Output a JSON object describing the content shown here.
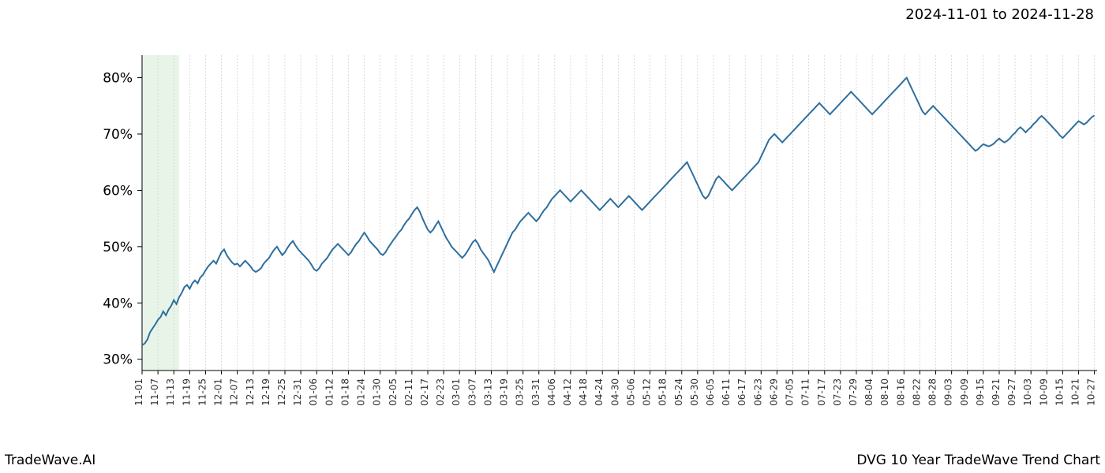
{
  "header": {
    "date_range": "2024-11-01 to 2024-11-28"
  },
  "footer": {
    "brand": "TradeWave.AI",
    "title": "DVG 10 Year TradeWave Trend Chart"
  },
  "chart": {
    "type": "line",
    "background_color": "#ffffff",
    "grid_color": "#cccccc",
    "axis_color": "#000000",
    "line_color": "#2e6f9e",
    "line_width": 2,
    "highlight_band": {
      "start_index": 0,
      "end_index": 14,
      "fill": "#dceedc",
      "opacity": 0.65
    },
    "xlim": [
      0,
      361
    ],
    "ylim": [
      28,
      84
    ],
    "ytick_step": 10,
    "ytick_suffix": "%",
    "ytick_fontsize": 17,
    "xtick_fontsize": 12,
    "xtick_rotation_deg": 90,
    "x_labels": [
      "11-01",
      "11-07",
      "11-13",
      "11-19",
      "11-25",
      "12-01",
      "12-07",
      "12-13",
      "12-19",
      "12-25",
      "12-31",
      "01-06",
      "01-12",
      "01-18",
      "01-24",
      "01-30",
      "02-05",
      "02-11",
      "02-17",
      "02-23",
      "03-01",
      "03-07",
      "03-13",
      "03-19",
      "03-25",
      "03-31",
      "04-06",
      "04-12",
      "04-18",
      "04-24",
      "04-30",
      "05-06",
      "05-12",
      "05-18",
      "05-24",
      "05-30",
      "06-05",
      "06-11",
      "06-17",
      "06-23",
      "06-29",
      "07-05",
      "07-11",
      "07-17",
      "07-23",
      "07-29",
      "08-04",
      "08-10",
      "08-16",
      "08-22",
      "08-28",
      "09-03",
      "09-09",
      "09-15",
      "09-21",
      "09-27",
      "10-03",
      "10-09",
      "10-15",
      "10-21",
      "10-27"
    ],
    "x_label_step": 6,
    "values": [
      32.5,
      32.8,
      33.5,
      34.8,
      35.5,
      36.2,
      37.0,
      37.5,
      38.5,
      37.8,
      38.8,
      39.5,
      40.5,
      39.8,
      41.0,
      41.8,
      42.8,
      43.2,
      42.5,
      43.5,
      44.0,
      43.5,
      44.5,
      45.0,
      45.8,
      46.5,
      47.0,
      47.5,
      47.0,
      48.0,
      49.0,
      49.5,
      48.5,
      47.8,
      47.2,
      46.8,
      47.0,
      46.5,
      47.0,
      47.5,
      47.0,
      46.5,
      45.8,
      45.5,
      45.8,
      46.2,
      47.0,
      47.5,
      48.0,
      48.8,
      49.5,
      50.0,
      49.2,
      48.5,
      49.0,
      49.8,
      50.5,
      51.0,
      50.2,
      49.5,
      49.0,
      48.5,
      48.0,
      47.5,
      46.8,
      46.0,
      45.7,
      46.2,
      47.0,
      47.5,
      48.0,
      48.8,
      49.5,
      50.0,
      50.5,
      50.0,
      49.5,
      49.0,
      48.5,
      49.0,
      49.8,
      50.5,
      51.0,
      51.8,
      52.5,
      51.8,
      51.0,
      50.5,
      50.0,
      49.5,
      48.8,
      48.5,
      49.0,
      49.8,
      50.5,
      51.2,
      51.8,
      52.5,
      53.0,
      53.8,
      54.5,
      55.0,
      55.8,
      56.5,
      57.0,
      56.2,
      55.0,
      54.0,
      53.0,
      52.5,
      53.0,
      53.8,
      54.5,
      53.5,
      52.5,
      51.5,
      50.8,
      50.0,
      49.5,
      49.0,
      48.5,
      48.0,
      48.5,
      49.2,
      50.0,
      50.8,
      51.2,
      50.5,
      49.5,
      48.8,
      48.2,
      47.5,
      46.5,
      45.5,
      46.5,
      47.5,
      48.5,
      49.5,
      50.5,
      51.5,
      52.5,
      53.0,
      53.8,
      54.5,
      55.0,
      55.5,
      56.0,
      55.5,
      55.0,
      54.5,
      55.0,
      55.8,
      56.5,
      57.0,
      57.8,
      58.5,
      59.0,
      59.5,
      60.0,
      59.5,
      59.0,
      58.5,
      58.0,
      58.5,
      59.0,
      59.5,
      60.0,
      59.5,
      59.0,
      58.5,
      58.0,
      57.5,
      57.0,
      56.5,
      57.0,
      57.5,
      58.0,
      58.5,
      58.0,
      57.5,
      57.0,
      57.5,
      58.0,
      58.5,
      59.0,
      58.5,
      58.0,
      57.5,
      57.0,
      56.5,
      57.0,
      57.5,
      58.0,
      58.5,
      59.0,
      59.5,
      60.0,
      60.5,
      61.0,
      61.5,
      62.0,
      62.5,
      63.0,
      63.5,
      64.0,
      64.5,
      65.0,
      64.0,
      63.0,
      62.0,
      61.0,
      60.0,
      59.0,
      58.5,
      59.0,
      60.0,
      61.0,
      62.0,
      62.5,
      62.0,
      61.5,
      61.0,
      60.5,
      60.0,
      60.5,
      61.0,
      61.5,
      62.0,
      62.5,
      63.0,
      63.5,
      64.0,
      64.5,
      65.0,
      66.0,
      67.0,
      68.0,
      69.0,
      69.5,
      70.0,
      69.5,
      69.0,
      68.5,
      69.0,
      69.5,
      70.0,
      70.5,
      71.0,
      71.5,
      72.0,
      72.5,
      73.0,
      73.5,
      74.0,
      74.5,
      75.0,
      75.5,
      75.0,
      74.5,
      74.0,
      73.5,
      74.0,
      74.5,
      75.0,
      75.5,
      76.0,
      76.5,
      77.0,
      77.5,
      77.0,
      76.5,
      76.0,
      75.5,
      75.0,
      74.5,
      74.0,
      73.5,
      74.0,
      74.5,
      75.0,
      75.5,
      76.0,
      76.5,
      77.0,
      77.5,
      78.0,
      78.5,
      79.0,
      79.5,
      80.0,
      79.0,
      78.0,
      77.0,
      76.0,
      75.0,
      74.0,
      73.5,
      74.0,
      74.5,
      75.0,
      74.5,
      74.0,
      73.5,
      73.0,
      72.5,
      72.0,
      71.5,
      71.0,
      70.5,
      70.0,
      69.5,
      69.0,
      68.5,
      68.0,
      67.5,
      67.0,
      67.3,
      67.8,
      68.2,
      68.0,
      67.8,
      68.0,
      68.3,
      68.8,
      69.2,
      68.8,
      68.5,
      68.8,
      69.2,
      69.8,
      70.2,
      70.8,
      71.2,
      70.8,
      70.3,
      70.8,
      71.2,
      71.8,
      72.2,
      72.8,
      73.2,
      72.8,
      72.3,
      71.8,
      71.3,
      70.8,
      70.3,
      69.7,
      69.3,
      69.8,
      70.3,
      70.8,
      71.3,
      71.8,
      72.3,
      72.0,
      71.7,
      72.0,
      72.5,
      73.0,
      73.3
    ]
  }
}
